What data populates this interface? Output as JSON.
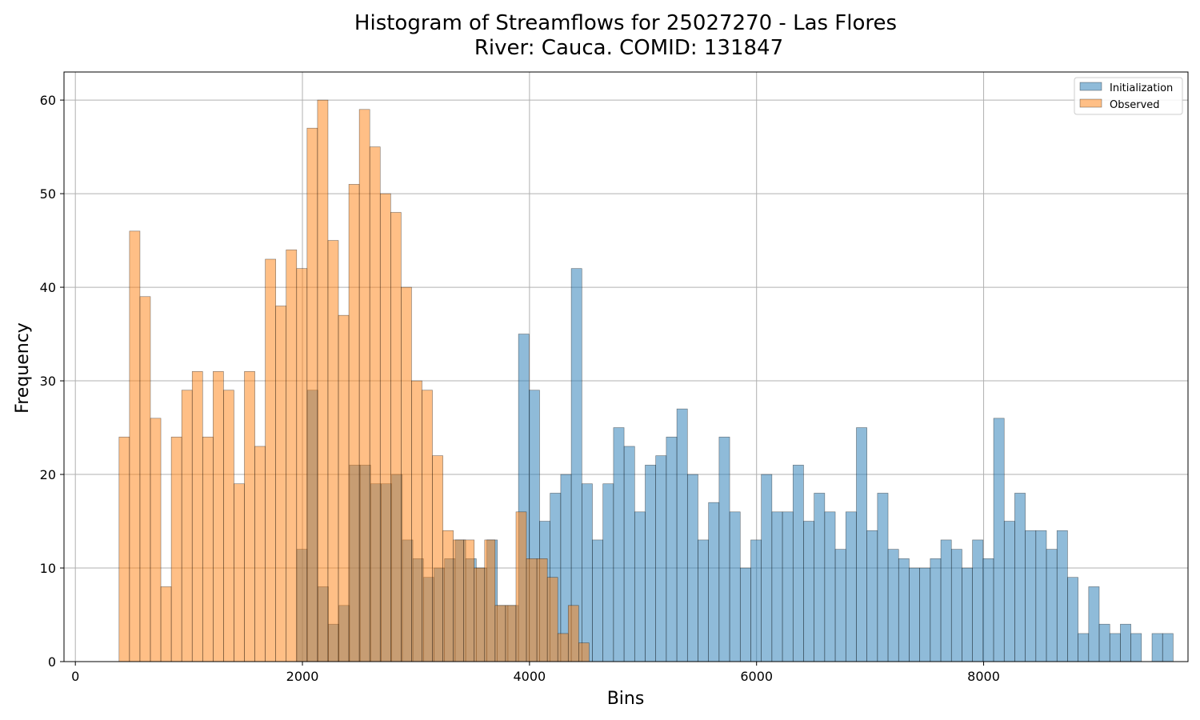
{
  "chart_data": {
    "type": "bar",
    "title": "Histogram of Streamflows for 25027270 - Las Flores",
    "subtitle": "River: Cauca. COMID: 131847",
    "xlabel": "Bins",
    "ylabel": "Frequency",
    "xlim": [
      -100,
      9800
    ],
    "ylim": [
      0,
      63
    ],
    "xticks": [
      0,
      2000,
      4000,
      6000,
      8000
    ],
    "yticks": [
      0,
      10,
      20,
      30,
      40,
      50,
      60
    ],
    "grid": true,
    "legend_position": "top-right",
    "series": [
      {
        "name": "Initialization",
        "color": "#1f77b4",
        "bin_start": 1950,
        "bin_width": 93,
        "values": [
          12,
          29,
          8,
          4,
          6,
          21,
          21,
          19,
          19,
          20,
          13,
          11,
          9,
          10,
          11,
          13,
          11,
          10,
          13,
          6,
          6,
          35,
          29,
          15,
          18,
          20,
          42,
          19,
          13,
          19,
          25,
          23,
          16,
          21,
          22,
          24,
          27,
          20,
          13,
          17,
          24,
          16,
          10,
          13,
          20,
          16,
          16,
          21,
          15,
          18,
          16,
          12,
          16,
          25,
          14,
          18,
          12,
          11,
          10,
          10,
          11,
          13,
          12,
          10,
          13,
          11,
          26,
          15,
          18,
          14,
          14,
          12,
          14,
          9,
          3,
          8,
          4,
          3,
          4,
          3,
          0,
          3,
          3
        ]
      },
      {
        "name": "Observed",
        "color": "#ff7f0e",
        "bin_start": 385,
        "bin_width": 92,
        "values": [
          24,
          46,
          39,
          26,
          8,
          24,
          29,
          31,
          24,
          31,
          29,
          19,
          31,
          23,
          43,
          38,
          44,
          42,
          57,
          60,
          45,
          37,
          51,
          59,
          55,
          50,
          48,
          40,
          30,
          29,
          22,
          14,
          13,
          13,
          10,
          13,
          6,
          6,
          16,
          11,
          11,
          9,
          3,
          6,
          2
        ]
      }
    ]
  }
}
